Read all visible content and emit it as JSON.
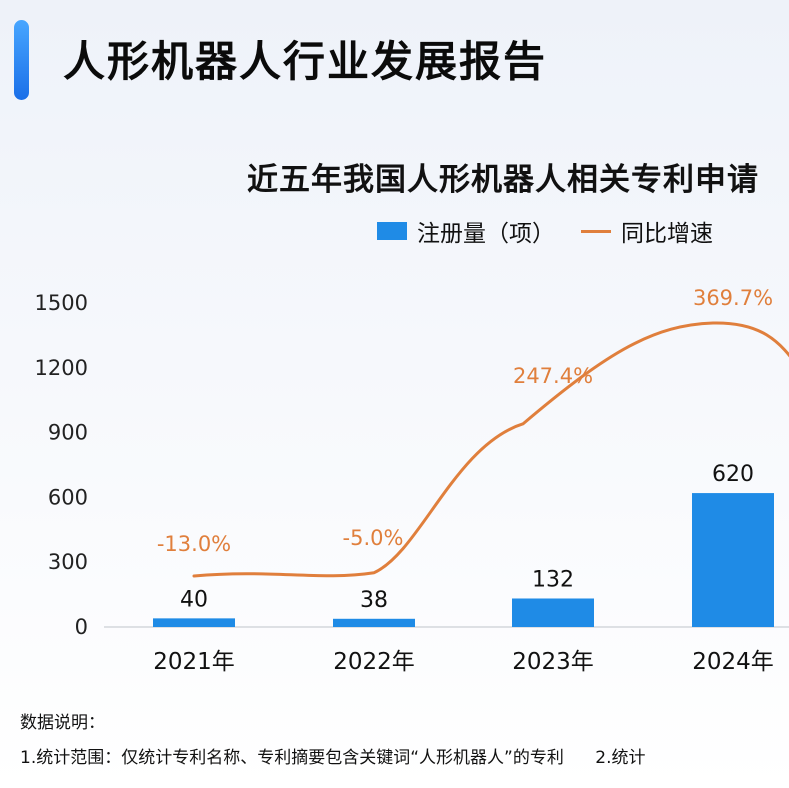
{
  "header": {
    "title": "人形机器人行业发展报告"
  },
  "chart_data": {
    "type": "bar",
    "title": "近五年我国人形机器人相关专利申请",
    "categories": [
      "2021年",
      "2022年",
      "2023年",
      "2024年"
    ],
    "series": [
      {
        "name": "注册量（项）",
        "type": "bar",
        "color": "#1f8be6",
        "values": [
          40,
          38,
          132,
          620
        ],
        "labels": [
          "40",
          "38",
          "132",
          "620"
        ]
      },
      {
        "name": "同比增速",
        "type": "line",
        "color": "#e07f3c",
        "values": [
          -13.0,
          -5.0,
          247.4,
          369.7
        ],
        "labels": [
          "-13.0%",
          "-5.0%",
          "247.4%",
          "369.7%"
        ]
      }
    ],
    "y_ticks": [
      "0",
      "300",
      "600",
      "900",
      "1200",
      "1500"
    ],
    "ylim": [
      0,
      1500
    ],
    "grid": false,
    "legend": "top-center"
  },
  "notes": {
    "heading": "数据说明：",
    "items": [
      "1.统计范围：仅统计专利名称、专利摘要包含关键词“人形机器人”的专利",
      "2.统计"
    ]
  }
}
